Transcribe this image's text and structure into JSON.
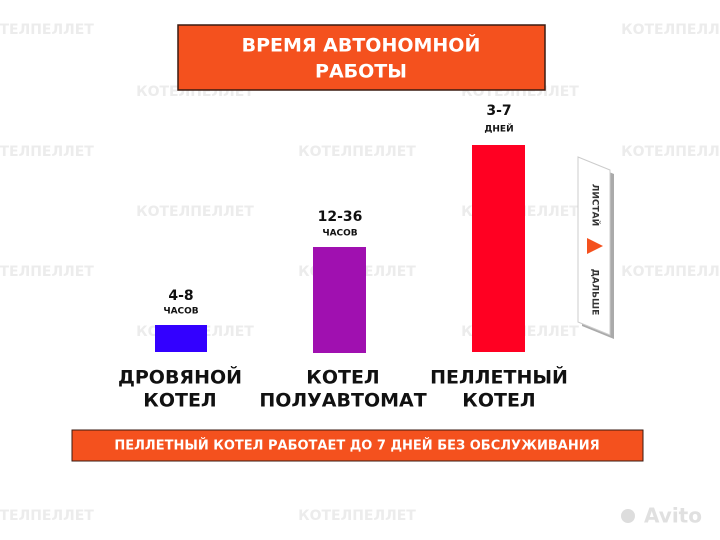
{
  "header": {
    "title_lines": [
      "ВРЕМЯ АВТОНОМНОЙ",
      "РАБОТЫ"
    ]
  },
  "watermark": "КОТЕЛПЕЛЛЕТ",
  "items": [
    {
      "amount": "4-8",
      "unit": "ЧАСОВ",
      "name_lines": [
        "ДРОВЯНОЙ",
        "КОТЕЛ"
      ]
    },
    {
      "amount": "12-36",
      "unit": "ЧАСОВ",
      "name_lines": [
        "КОТЕЛ",
        "ПОЛУАВТОМАТ"
      ]
    },
    {
      "amount": "3-7",
      "unit": "ДНЕЙ",
      "name_lines": [
        "ПЕЛЛЕТНЫЙ",
        "КОТЕЛ"
      ]
    }
  ],
  "footer": {
    "banner": "ПЕЛЛЕТНЫЙ КОТЕЛ РАБОТАЕТ ДО 7 ДНЕЙ БЕЗ ОБСЛУЖИВАНИЯ"
  },
  "side_hint": {
    "top": "ЛИСТАЙ",
    "bottom": "ДАЛЬШЕ"
  },
  "logo": "Avito"
}
